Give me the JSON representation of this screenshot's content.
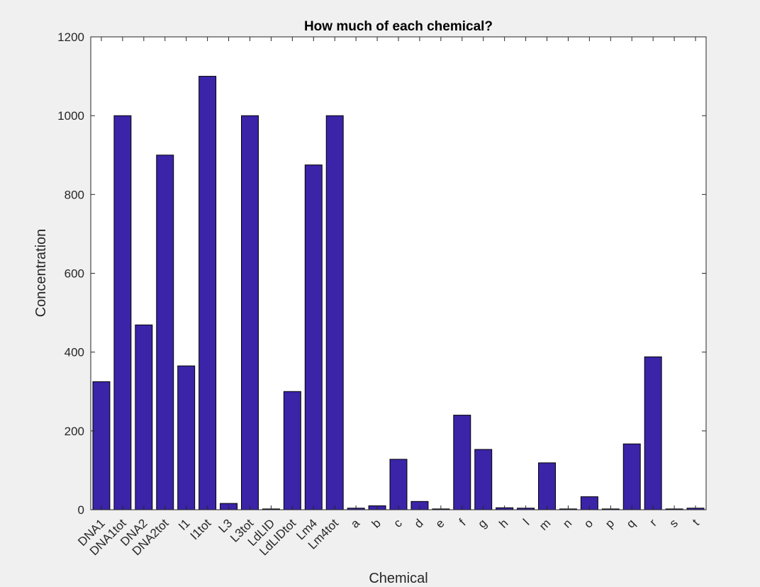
{
  "chart_data": {
    "type": "bar",
    "title": "How much of each chemical?",
    "xlabel": "Chemical",
    "ylabel": "Concentration",
    "ylim": [
      0,
      1200
    ],
    "yticks": [
      0,
      200,
      400,
      600,
      800,
      1000,
      1200
    ],
    "grid": false,
    "categories": [
      "DNA1",
      "DNA1tot",
      "DNA2",
      "DNA2tot",
      "I1",
      "I1tot",
      "L3",
      "L3tot",
      "LdLID",
      "LdLIDtot",
      "Lm4",
      "Lm4tot",
      "a",
      "b",
      "c",
      "d",
      "e",
      "f",
      "g",
      "h",
      "l",
      "m",
      "n",
      "o",
      "p",
      "q",
      "r",
      "s",
      "t"
    ],
    "values": [
      325,
      1000,
      469,
      900,
      365,
      1100,
      16,
      1000,
      2,
      300,
      875,
      1000,
      4,
      10,
      128,
      21,
      2,
      240,
      153,
      5,
      4,
      119,
      2,
      33,
      2,
      167,
      388,
      2,
      4
    ],
    "colors": {
      "bar": "#3b24a8",
      "bar_edge": "#000000",
      "axes_bg": "#ffffff",
      "figure_bg": "#f0f0f0"
    }
  }
}
